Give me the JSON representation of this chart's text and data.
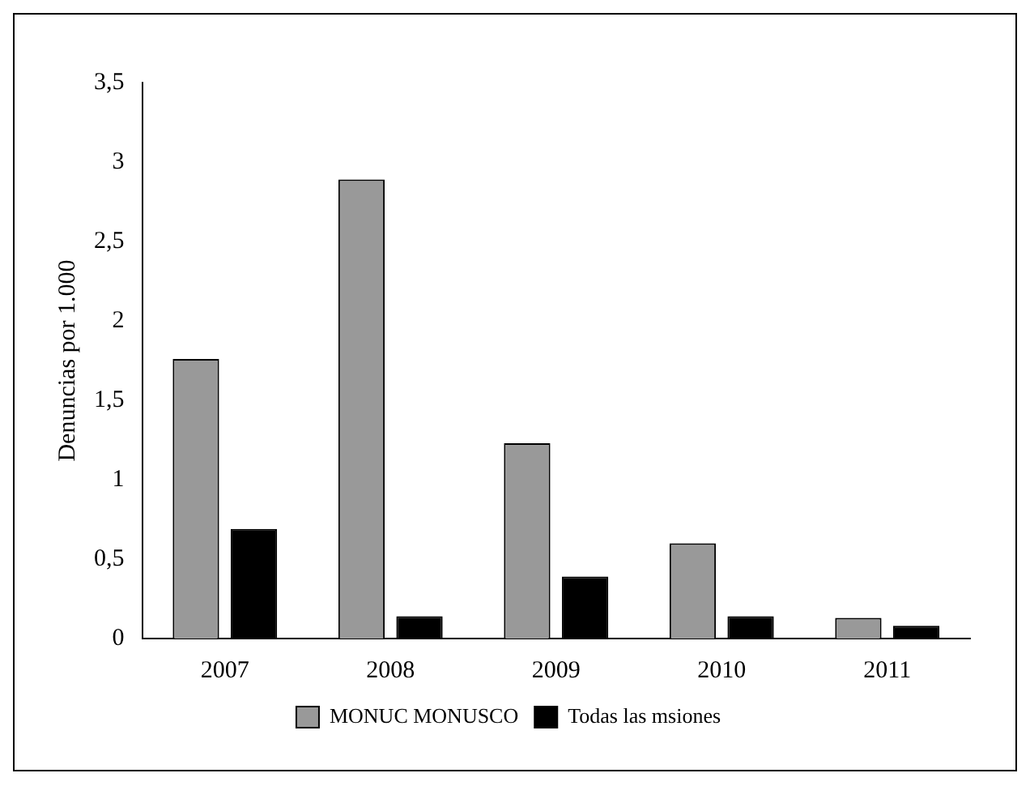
{
  "chart_data": {
    "type": "bar",
    "ylabel": "Denuncias por 1.000",
    "categories": [
      "2007",
      "2008",
      "2009",
      "2010",
      "2011"
    ],
    "series": [
      {
        "name": "MONUC MONUSCO",
        "color": "#999999",
        "values": [
          1.76,
          2.89,
          1.23,
          0.6,
          0.13
        ]
      },
      {
        "name": "Todas las msiones",
        "color": "#000000",
        "values": [
          0.69,
          0.14,
          0.39,
          0.14,
          0.08
        ]
      }
    ],
    "ylim": [
      0,
      3.5
    ],
    "yticks": [
      0,
      {
        "value": 0.5,
        "label": "0,5"
      },
      1,
      {
        "value": 1.5,
        "label": "1,5"
      },
      2,
      {
        "value": 2.5,
        "label": "2,5"
      },
      3,
      {
        "value": 3.5,
        "label": "3,5"
      }
    ],
    "grid": false,
    "legend": "bottom"
  }
}
